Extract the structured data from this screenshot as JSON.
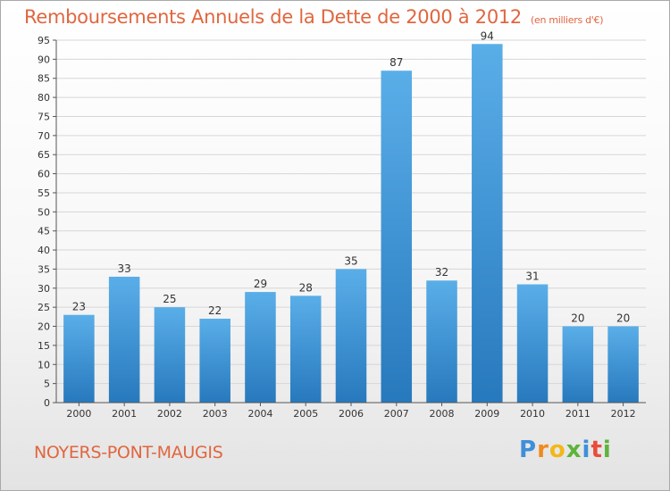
{
  "title": "Remboursements Annuels de la Dette de 2000 à 2012",
  "unit": "(en milliers d'€)",
  "commune": "NOYERS-PONT-MAUGIS",
  "logo": {
    "letters": [
      "P",
      "r",
      "o",
      "x",
      "i",
      "t",
      "i"
    ],
    "colors": [
      "#3f8fd8",
      "#f08a1e",
      "#f2b81a",
      "#5db43a",
      "#3f8fd8",
      "#e84d3c",
      "#5db43a"
    ]
  },
  "colors": {
    "bar": "#4a9fe0",
    "bar_dark": "#2a7ec2",
    "title": "#e0663f"
  },
  "chart_data": {
    "type": "bar",
    "categories": [
      "2000",
      "2001",
      "2002",
      "2003",
      "2004",
      "2005",
      "2006",
      "2007",
      "2008",
      "2009",
      "2010",
      "2011",
      "2012"
    ],
    "values": [
      23,
      33,
      25,
      22,
      29,
      28,
      35,
      87,
      32,
      94,
      31,
      20,
      20
    ],
    "ylim": [
      0,
      95
    ],
    "yticks": [
      0,
      5,
      10,
      15,
      20,
      25,
      30,
      35,
      40,
      45,
      50,
      55,
      60,
      65,
      70,
      75,
      80,
      85,
      90,
      95
    ],
    "grid": true,
    "data_labels": true
  }
}
